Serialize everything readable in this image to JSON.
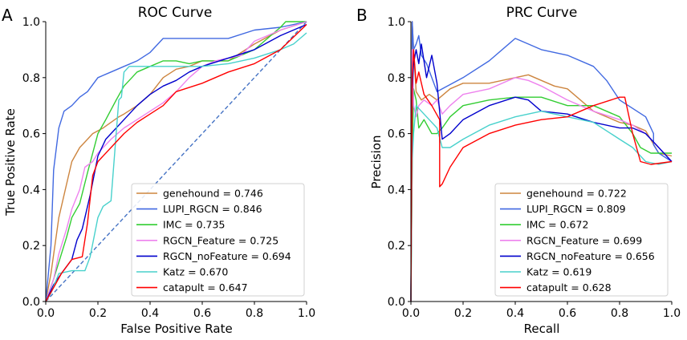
{
  "figure": {
    "panels": [
      "A",
      "B"
    ]
  },
  "chart_data": [
    {
      "type": "line",
      "panel": "A",
      "title": "ROC Curve",
      "xlabel": "False Positive Rate",
      "ylabel": "True Positive Rate",
      "xlim": [
        0,
        1
      ],
      "ylim": [
        0,
        1
      ],
      "xticks": [
        "0.0",
        "0.2",
        "0.4",
        "0.6",
        "0.8",
        "1.0"
      ],
      "yticks": [
        "0.0",
        "0.2",
        "0.4",
        "0.6",
        "0.8",
        "1.0"
      ],
      "grid": false,
      "legend_position": "lower-right",
      "reference_line": {
        "style": "dashed",
        "color": "#4472c4",
        "x": [
          0,
          1
        ],
        "y": [
          0,
          1
        ]
      },
      "series": [
        {
          "name": "genehound",
          "auc_label": "genehound = 0.746",
          "color": "#cd853f",
          "x": [
            0,
            0.02,
            0.05,
            0.08,
            0.1,
            0.13,
            0.15,
            0.18,
            0.2,
            0.22,
            0.25,
            0.28,
            0.3,
            0.35,
            0.4,
            0.45,
            0.5,
            0.55,
            0.6,
            0.7,
            0.8,
            0.9,
            1.0
          ],
          "y": [
            0,
            0.1,
            0.3,
            0.42,
            0.5,
            0.55,
            0.57,
            0.6,
            0.61,
            0.62,
            0.64,
            0.66,
            0.67,
            0.7,
            0.74,
            0.8,
            0.83,
            0.84,
            0.86,
            0.86,
            0.92,
            0.97,
            1.0
          ]
        },
        {
          "name": "LUPI_RGCN",
          "auc_label": "LUPI_RGCN = 0.846",
          "color": "#4169e1",
          "x": [
            0,
            0.01,
            0.02,
            0.03,
            0.05,
            0.07,
            0.1,
            0.13,
            0.16,
            0.2,
            0.25,
            0.3,
            0.35,
            0.4,
            0.45,
            0.5,
            0.6,
            0.7,
            0.8,
            0.9,
            1.0
          ],
          "y": [
            0,
            0.1,
            0.2,
            0.47,
            0.62,
            0.68,
            0.7,
            0.73,
            0.75,
            0.8,
            0.82,
            0.84,
            0.86,
            0.89,
            0.94,
            0.94,
            0.94,
            0.94,
            0.97,
            0.98,
            1.0
          ]
        },
        {
          "name": "IMC",
          "auc_label": "IMC = 0.735",
          "color": "#32cd32",
          "x": [
            0,
            0.03,
            0.05,
            0.08,
            0.1,
            0.13,
            0.16,
            0.2,
            0.23,
            0.27,
            0.3,
            0.33,
            0.35,
            0.4,
            0.45,
            0.5,
            0.55,
            0.6,
            0.7,
            0.8,
            0.9,
            0.92,
            1.0
          ],
          "y": [
            0,
            0.08,
            0.14,
            0.23,
            0.3,
            0.35,
            0.46,
            0.6,
            0.65,
            0.72,
            0.77,
            0.8,
            0.82,
            0.84,
            0.86,
            0.86,
            0.85,
            0.86,
            0.86,
            0.9,
            0.98,
            1.0,
            1.0
          ]
        },
        {
          "name": "RGCN_Feature",
          "auc_label": "RGCN_Feature = 0.725",
          "color": "#ee82ee",
          "x": [
            0,
            0.03,
            0.05,
            0.08,
            0.1,
            0.13,
            0.15,
            0.18,
            0.2,
            0.25,
            0.3,
            0.35,
            0.4,
            0.45,
            0.5,
            0.55,
            0.6,
            0.65,
            0.7,
            0.75,
            0.8,
            0.9,
            1.0
          ],
          "y": [
            0,
            0.08,
            0.17,
            0.26,
            0.33,
            0.4,
            0.48,
            0.5,
            0.53,
            0.58,
            0.62,
            0.65,
            0.68,
            0.71,
            0.75,
            0.8,
            0.84,
            0.86,
            0.87,
            0.88,
            0.93,
            0.97,
            1.0
          ]
        },
        {
          "name": "RGCN_noFeature",
          "auc_label": "RGCN_noFeature = 0.694",
          "color": "#0000cd",
          "x": [
            0,
            0.03,
            0.06,
            0.1,
            0.12,
            0.14,
            0.15,
            0.17,
            0.2,
            0.23,
            0.25,
            0.3,
            0.35,
            0.4,
            0.45,
            0.5,
            0.55,
            0.6,
            0.7,
            0.8,
            0.9,
            1.0
          ],
          "y": [
            0,
            0.06,
            0.1,
            0.15,
            0.22,
            0.26,
            0.3,
            0.38,
            0.52,
            0.58,
            0.6,
            0.65,
            0.7,
            0.74,
            0.77,
            0.79,
            0.82,
            0.84,
            0.87,
            0.9,
            0.95,
            0.99
          ]
        },
        {
          "name": "Katz",
          "auc_label": "Katz = 0.670",
          "color": "#48d1cc",
          "x": [
            0,
            0.02,
            0.05,
            0.1,
            0.15,
            0.17,
            0.2,
            0.22,
            0.25,
            0.28,
            0.29,
            0.3,
            0.32,
            0.4,
            0.5,
            0.6,
            0.7,
            0.8,
            0.9,
            0.95,
            1.0
          ],
          "y": [
            0,
            0.03,
            0.1,
            0.11,
            0.11,
            0.16,
            0.3,
            0.34,
            0.36,
            0.72,
            0.73,
            0.82,
            0.84,
            0.84,
            0.84,
            0.84,
            0.85,
            0.87,
            0.9,
            0.92,
            0.96
          ]
        },
        {
          "name": "catapult",
          "auc_label": "catapult = 0.647",
          "color": "#ff0000",
          "x": [
            0,
            0.03,
            0.06,
            0.1,
            0.14,
            0.16,
            0.18,
            0.2,
            0.25,
            0.3,
            0.35,
            0.4,
            0.45,
            0.5,
            0.6,
            0.7,
            0.8,
            0.9,
            1.0
          ],
          "y": [
            0,
            0.05,
            0.1,
            0.15,
            0.16,
            0.28,
            0.45,
            0.5,
            0.55,
            0.6,
            0.64,
            0.67,
            0.7,
            0.75,
            0.78,
            0.82,
            0.85,
            0.9,
            0.99
          ]
        }
      ]
    },
    {
      "type": "line",
      "panel": "B",
      "title": "PRC Curve",
      "xlabel": "Recall",
      "ylabel": "Precision",
      "xlim": [
        0,
        1
      ],
      "ylim": [
        0,
        1
      ],
      "xticks": [
        "0.0",
        "0.2",
        "0.4",
        "0.6",
        "0.8",
        "1.0"
      ],
      "yticks": [
        "0.0",
        "0.2",
        "0.4",
        "0.6",
        "0.8",
        "1.0"
      ],
      "grid": false,
      "legend_position": "lower-right",
      "series": [
        {
          "name": "genehound",
          "auc_label": "genehound = 0.722",
          "color": "#cd853f",
          "x": [
            0,
            0.005,
            0.01,
            0.02,
            0.04,
            0.07,
            0.1,
            0.15,
            0.2,
            0.3,
            0.4,
            0.45,
            0.5,
            0.55,
            0.6,
            0.7,
            0.8,
            0.85,
            0.9,
            0.95,
            1.0
          ],
          "y": [
            0,
            1.0,
            0.9,
            0.75,
            0.72,
            0.74,
            0.72,
            0.76,
            0.78,
            0.78,
            0.8,
            0.81,
            0.79,
            0.77,
            0.76,
            0.68,
            0.64,
            0.63,
            0.61,
            0.53,
            0.52
          ]
        },
        {
          "name": "LUPI_RGCN",
          "auc_label": "LUPI_RGCN = 0.809",
          "color": "#4169e1",
          "x": [
            0,
            0.005,
            0.01,
            0.02,
            0.03,
            0.04,
            0.06,
            0.1,
            0.12,
            0.2,
            0.3,
            0.4,
            0.45,
            0.5,
            0.6,
            0.7,
            0.75,
            0.8,
            0.85,
            0.9,
            0.93,
            0.93,
            0.95,
            1.0
          ],
          "y": [
            0,
            1.0,
            0.9,
            0.92,
            0.95,
            0.88,
            0.85,
            0.75,
            0.76,
            0.8,
            0.86,
            0.94,
            0.92,
            0.9,
            0.88,
            0.84,
            0.79,
            0.72,
            0.69,
            0.66,
            0.6,
            0.56,
            0.53,
            0.5
          ]
        },
        {
          "name": "IMC",
          "auc_label": "IMC = 0.672",
          "color": "#32cd32",
          "x": [
            0,
            0.005,
            0.01,
            0.02,
            0.03,
            0.05,
            0.08,
            0.1,
            0.12,
            0.15,
            0.2,
            0.3,
            0.4,
            0.5,
            0.6,
            0.7,
            0.8,
            0.85,
            0.88,
            0.92,
            0.96,
            1.0
          ],
          "y": [
            0,
            0.5,
            0.76,
            0.72,
            0.62,
            0.65,
            0.6,
            0.6,
            0.62,
            0.66,
            0.7,
            0.72,
            0.73,
            0.73,
            0.7,
            0.7,
            0.66,
            0.6,
            0.55,
            0.53,
            0.53,
            0.53
          ]
        },
        {
          "name": "RGCN_Feature",
          "auc_label": "RGCN_Feature = 0.699",
          "color": "#ee82ee",
          "x": [
            0,
            0.005,
            0.01,
            0.02,
            0.03,
            0.05,
            0.08,
            0.1,
            0.12,
            0.15,
            0.2,
            0.3,
            0.4,
            0.45,
            0.5,
            0.6,
            0.7,
            0.8,
            0.85,
            0.9,
            1.0
          ],
          "y": [
            0,
            0.9,
            0.7,
            0.66,
            0.7,
            0.72,
            0.7,
            0.72,
            0.67,
            0.7,
            0.74,
            0.76,
            0.8,
            0.79,
            0.77,
            0.72,
            0.68,
            0.65,
            0.63,
            0.6,
            0.5
          ]
        },
        {
          "name": "RGCN_noFeature",
          "auc_label": "RGCN_noFeature = 0.656",
          "color": "#0000cd",
          "x": [
            0,
            0.005,
            0.01,
            0.02,
            0.03,
            0.04,
            0.06,
            0.08,
            0.1,
            0.12,
            0.15,
            0.2,
            0.3,
            0.4,
            0.45,
            0.5,
            0.6,
            0.7,
            0.8,
            0.85,
            0.9,
            0.95,
            1.0
          ],
          "y": [
            0,
            0.75,
            0.85,
            0.9,
            0.85,
            0.92,
            0.8,
            0.88,
            0.78,
            0.58,
            0.6,
            0.65,
            0.7,
            0.73,
            0.72,
            0.68,
            0.67,
            0.64,
            0.62,
            0.62,
            0.6,
            0.55,
            0.5
          ]
        },
        {
          "name": "Katz",
          "auc_label": "Katz = 0.619",
          "color": "#48d1cc",
          "x": [
            0,
            0.005,
            0.01,
            0.02,
            0.04,
            0.07,
            0.1,
            0.12,
            0.15,
            0.2,
            0.3,
            0.4,
            0.5,
            0.6,
            0.7,
            0.8,
            0.85,
            0.9,
            0.95,
            1.0
          ],
          "y": [
            0,
            0.5,
            0.6,
            0.7,
            0.68,
            0.65,
            0.62,
            0.55,
            0.55,
            0.58,
            0.63,
            0.66,
            0.68,
            0.66,
            0.64,
            0.58,
            0.55,
            0.5,
            0.49,
            0.5
          ]
        },
        {
          "name": "catapult",
          "auc_label": "catapult = 0.628",
          "color": "#ff0000",
          "x": [
            0,
            0.005,
            0.01,
            0.02,
            0.03,
            0.05,
            0.08,
            0.11,
            0.11,
            0.12,
            0.15,
            0.2,
            0.3,
            0.4,
            0.5,
            0.6,
            0.7,
            0.8,
            0.82,
            0.85,
            0.88,
            0.92,
            1.0
          ],
          "y": [
            0,
            0.8,
            0.9,
            0.78,
            0.82,
            0.74,
            0.7,
            0.65,
            0.41,
            0.42,
            0.48,
            0.55,
            0.6,
            0.63,
            0.65,
            0.66,
            0.7,
            0.73,
            0.73,
            0.6,
            0.5,
            0.49,
            0.5
          ]
        }
      ]
    }
  ]
}
